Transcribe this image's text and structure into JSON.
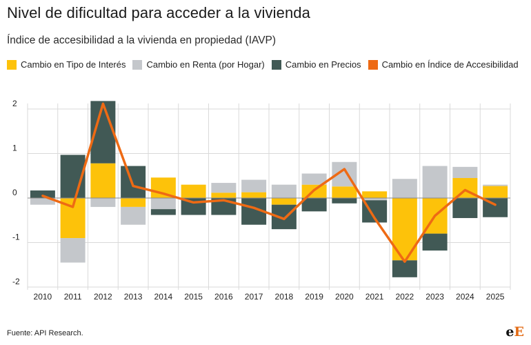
{
  "title": "Nivel de dificultad para acceder a la vivienda",
  "subtitle": "Índice de accesibilidad a la vivienda en propiedad (IAVP)",
  "source": "Fuente: API Research.",
  "logo": {
    "part1": "e",
    "part2": "E"
  },
  "colors": {
    "interest": "#fdc20a",
    "rent": "#c4c7cb",
    "prices": "#415955",
    "index": "#ee6a14",
    "grid": "#d9d9d9",
    "zero": "#8a8a8a"
  },
  "legend": [
    {
      "label": "Cambio en Tipo de Interés",
      "color": "#fdc20a"
    },
    {
      "label": "Cambio en Renta (por Hogar)",
      "color": "#c4c7cb"
    },
    {
      "label": "Cambio en Precios",
      "color": "#415955"
    },
    {
      "label": "Cambio en Índice de Accesibilidad",
      "color": "#ee6a14"
    }
  ],
  "chart_data": {
    "type": "bar",
    "stacked": true,
    "categories": [
      "2010",
      "2011",
      "2012",
      "2013",
      "2014",
      "2015",
      "2016",
      "2017",
      "2018",
      "2019",
      "2020",
      "2021",
      "2022",
      "2023",
      "2024",
      "2025"
    ],
    "series": [
      {
        "name": "Cambio en Tipo de Interés",
        "color": "#fdc20a",
        "values": [
          0.0,
          -0.9,
          0.78,
          -0.2,
          0.46,
          0.3,
          0.12,
          0.13,
          -0.15,
          0.3,
          0.26,
          0.15,
          -1.4,
          -0.8,
          0.45,
          0.27
        ]
      },
      {
        "name": "Cambio en Renta (por Hogar)",
        "color": "#c4c7cb",
        "values": [
          -0.15,
          -0.55,
          -0.2,
          -0.4,
          -0.25,
          0.0,
          0.22,
          0.28,
          0.3,
          0.25,
          0.55,
          -0.05,
          0.43,
          0.72,
          0.25,
          0.03
        ]
      },
      {
        "name": "Cambio en Precios",
        "color": "#415955",
        "values": [
          0.17,
          0.97,
          1.4,
          0.72,
          -0.13,
          -0.38,
          -0.38,
          -0.6,
          -0.55,
          -0.3,
          -0.12,
          -0.5,
          -0.38,
          -0.38,
          -0.45,
          -0.43
        ]
      }
    ],
    "line": {
      "name": "Cambio en Índice de Accesibilidad",
      "color": "#ee6a14",
      "values": [
        0.05,
        -0.2,
        2.12,
        0.27,
        0.1,
        -0.1,
        -0.05,
        -0.22,
        -0.47,
        0.18,
        0.65,
        -0.45,
        -1.43,
        -0.4,
        0.18,
        -0.15
      ]
    },
    "yticks": [
      2,
      1,
      0,
      -1,
      -2
    ],
    "ytick_labels": [
      "2",
      "1",
      "0",
      "-1",
      "-2"
    ],
    "ylim": [
      -2.05,
      2.25
    ],
    "grid": true,
    "legend_position": "top"
  }
}
